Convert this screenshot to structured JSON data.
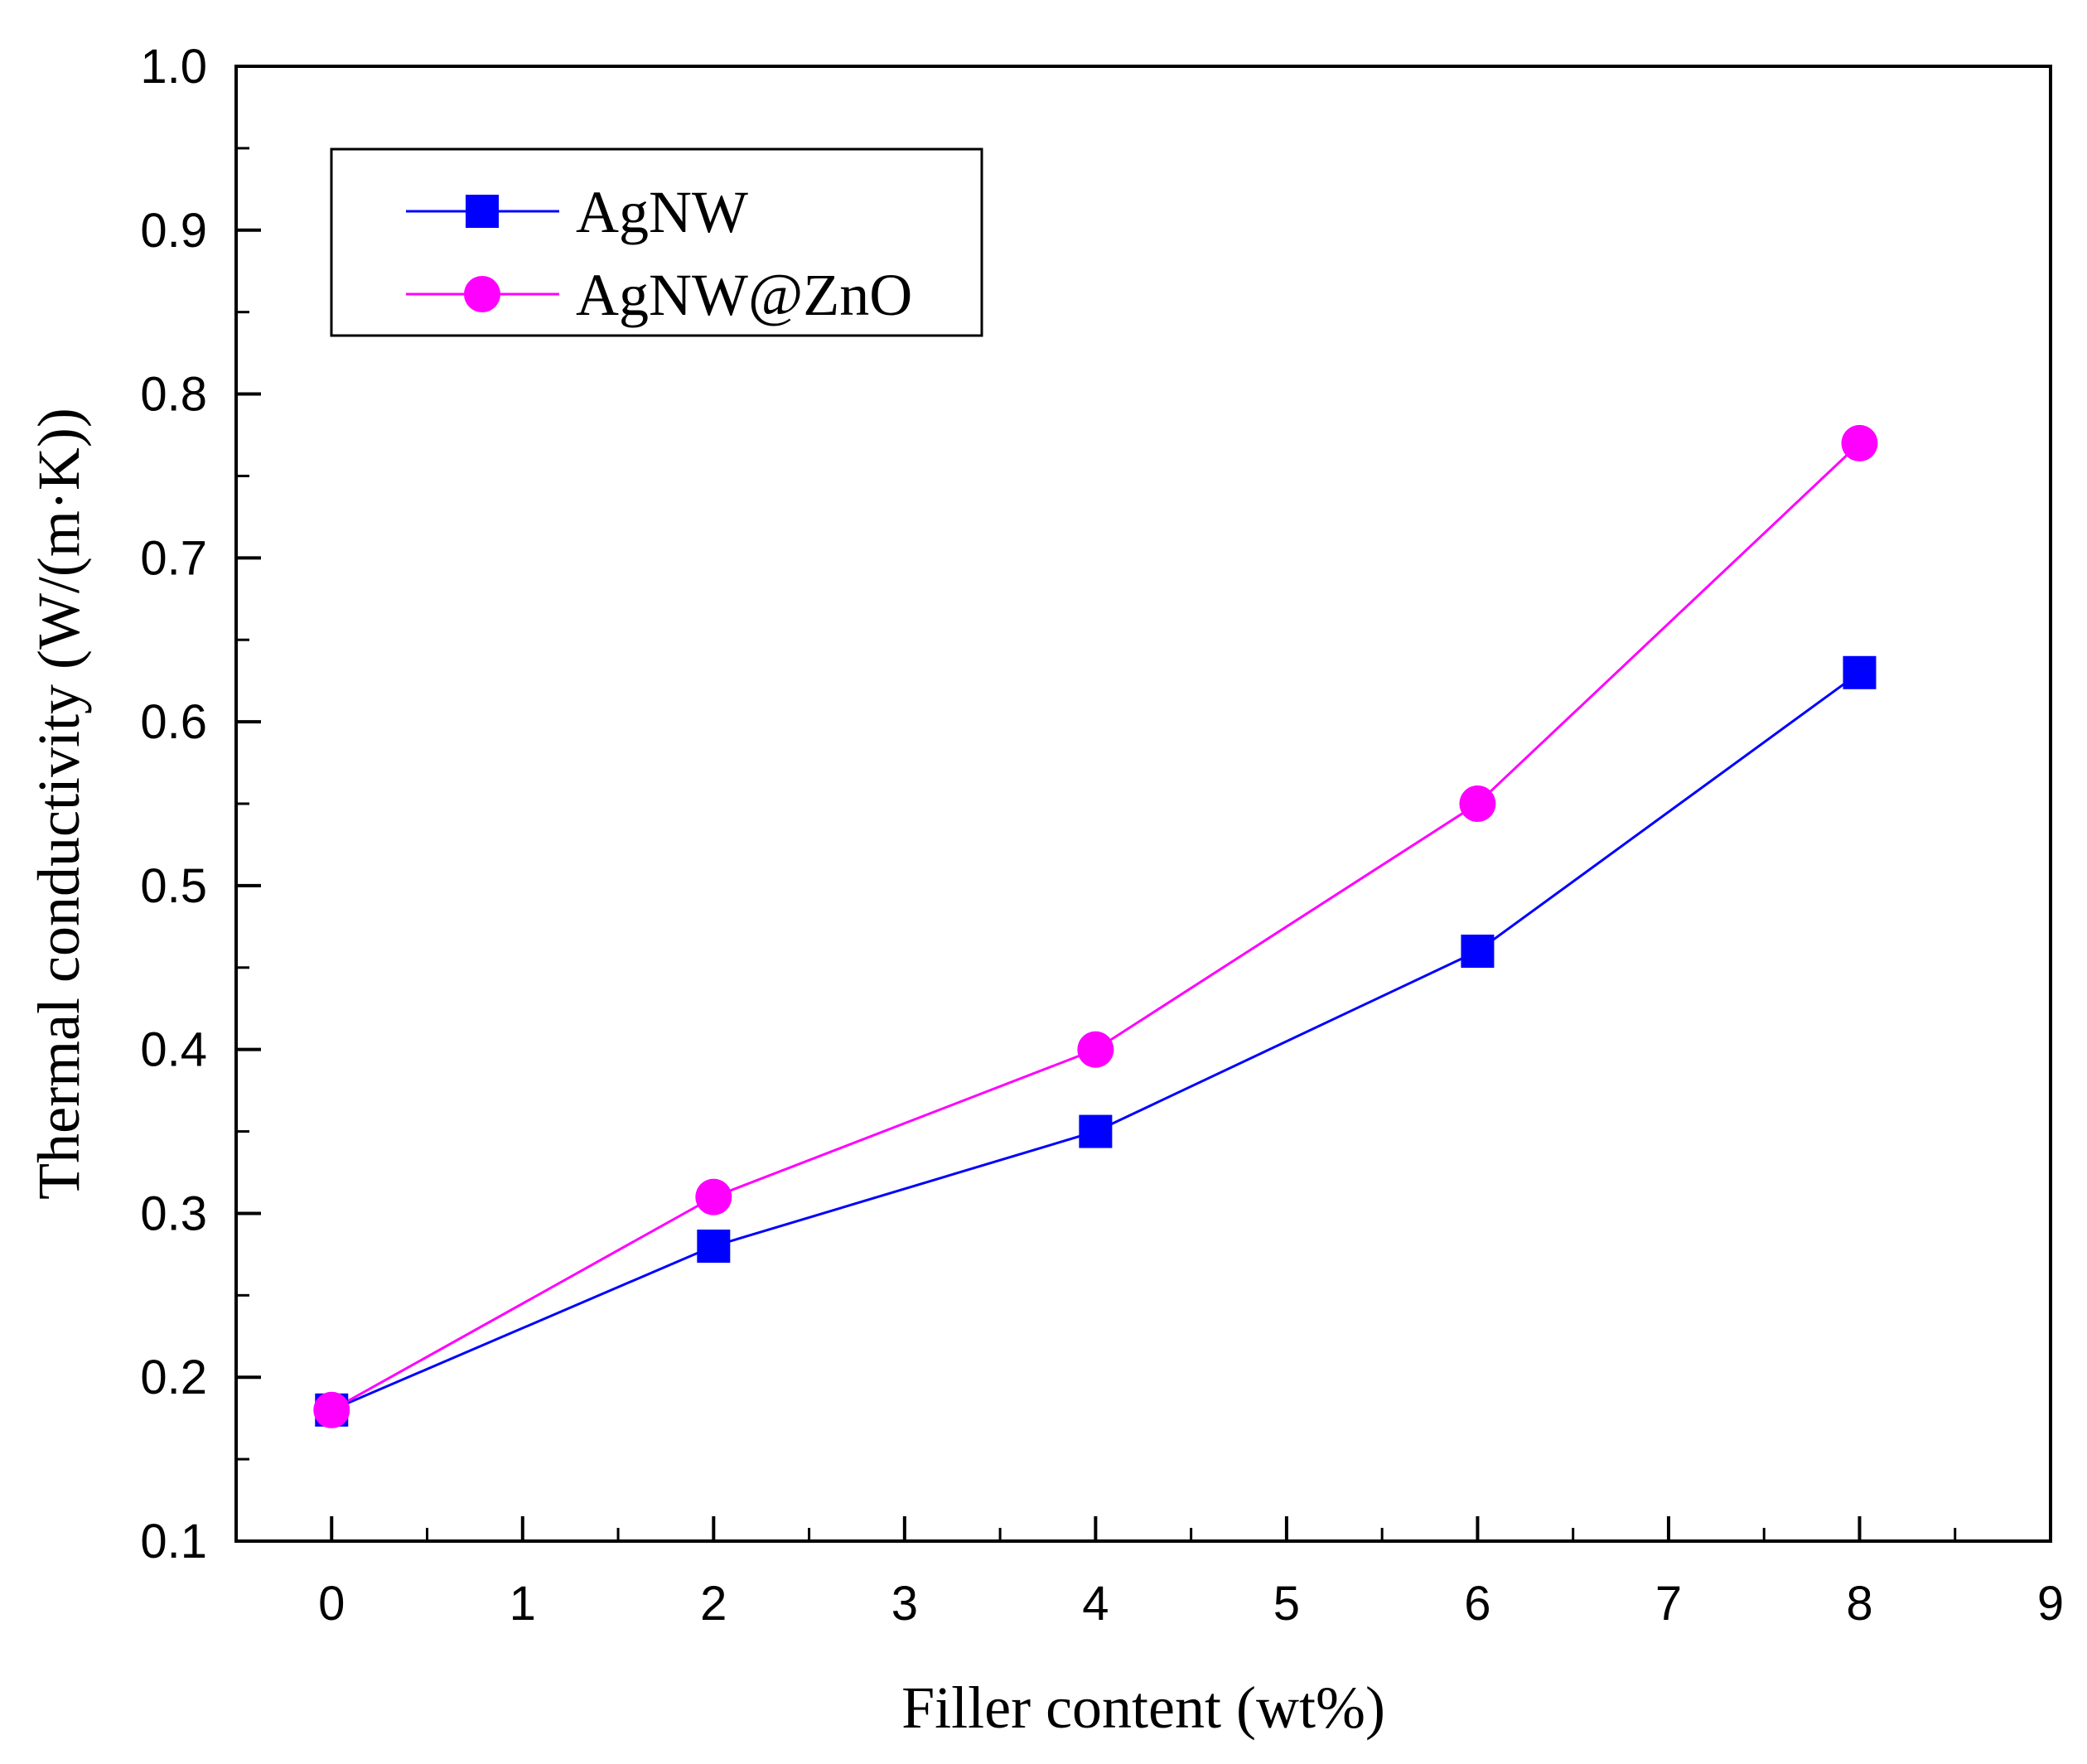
{
  "chart_data": {
    "type": "line",
    "xlabel": "Filler content (wt%)",
    "ylabel": "Thermal conductivity (W/(m·K))",
    "xlim": [
      -0.5,
      9
    ],
    "ylim": [
      0.1,
      1.0
    ],
    "xticks": [
      "0",
      "1",
      "2",
      "3",
      "4",
      "5",
      "6",
      "7",
      "8",
      "9"
    ],
    "yticks": [
      "0.1",
      "0.2",
      "0.3",
      "0.4",
      "0.5",
      "0.6",
      "0.7",
      "0.8",
      "0.9",
      "1.0"
    ],
    "x": [
      0,
      2,
      4,
      6,
      8
    ],
    "series": [
      {
        "name": "AgNW",
        "values": [
          0.18,
          0.28,
          0.35,
          0.46,
          0.63
        ],
        "color": "#0000ff",
        "marker": "square"
      },
      {
        "name": "AgNW@ZnO",
        "values": [
          0.18,
          0.31,
          0.4,
          0.55,
          0.77
        ],
        "color": "#ff00ff",
        "marker": "circle"
      }
    ],
    "legend_position": "top-left",
    "grid": false
  }
}
